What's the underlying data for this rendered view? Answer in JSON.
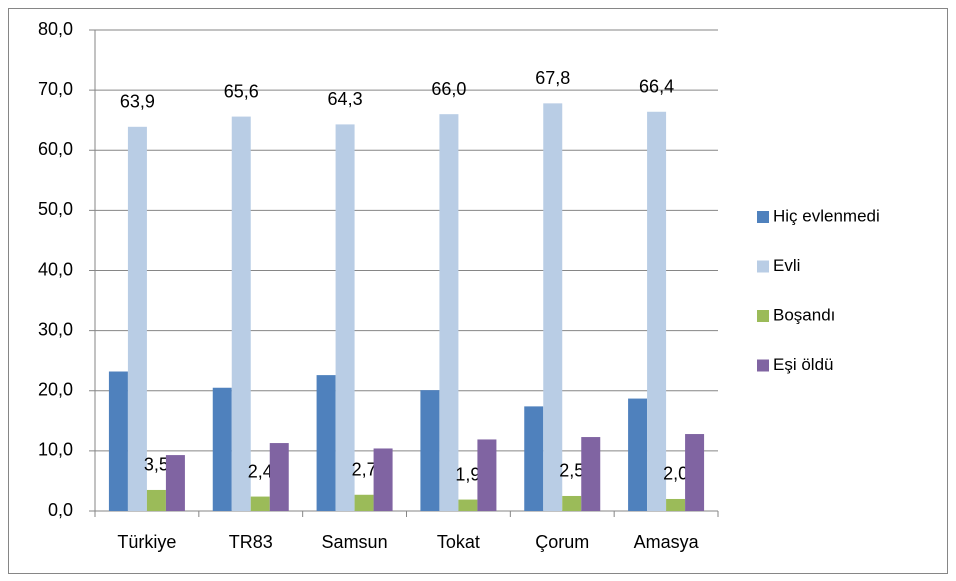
{
  "chart_data": {
    "type": "bar",
    "categories": [
      "Türkiye",
      "TR83",
      "Samsun",
      "Tokat",
      "Çorum",
      "Amasya"
    ],
    "series": [
      {
        "name": "Hiç evlenmedi",
        "color": "#4f81bd",
        "values": [
          23.2,
          20.5,
          22.6,
          20.1,
          17.4,
          18.7
        ]
      },
      {
        "name": "Evli",
        "color": "#b9cde5",
        "values": [
          63.9,
          65.6,
          64.3,
          66.0,
          67.8,
          66.4
        ],
        "value_labels": [
          "63,9",
          "65,6",
          "64,3",
          "66,0",
          "67,8",
          "66,4"
        ]
      },
      {
        "name": "Boşandı",
        "color": "#9bbb59",
        "values": [
          3.5,
          2.4,
          2.7,
          1.9,
          2.5,
          2.0
        ],
        "value_labels": [
          "3,5",
          "2,4",
          "2,7",
          "1,9",
          "2,5",
          "2,0"
        ]
      },
      {
        "name": "Eşi öldü",
        "color": "#8064a2",
        "values": [
          9.3,
          11.3,
          10.4,
          11.9,
          12.3,
          12.8
        ]
      }
    ],
    "ylim": [
      0,
      80
    ],
    "yticks": [
      {
        "value": 0,
        "label": "0,0"
      },
      {
        "value": 10,
        "label": "10,0"
      },
      {
        "value": 20,
        "label": "20,0"
      },
      {
        "value": 30,
        "label": "30,0"
      },
      {
        "value": 40,
        "label": "40,0"
      },
      {
        "value": 50,
        "label": "50,0"
      },
      {
        "value": 60,
        "label": "60,0"
      },
      {
        "value": 70,
        "label": "70,0"
      },
      {
        "value": 80,
        "label": "80,0"
      }
    ],
    "grid": true,
    "legend": "right"
  }
}
